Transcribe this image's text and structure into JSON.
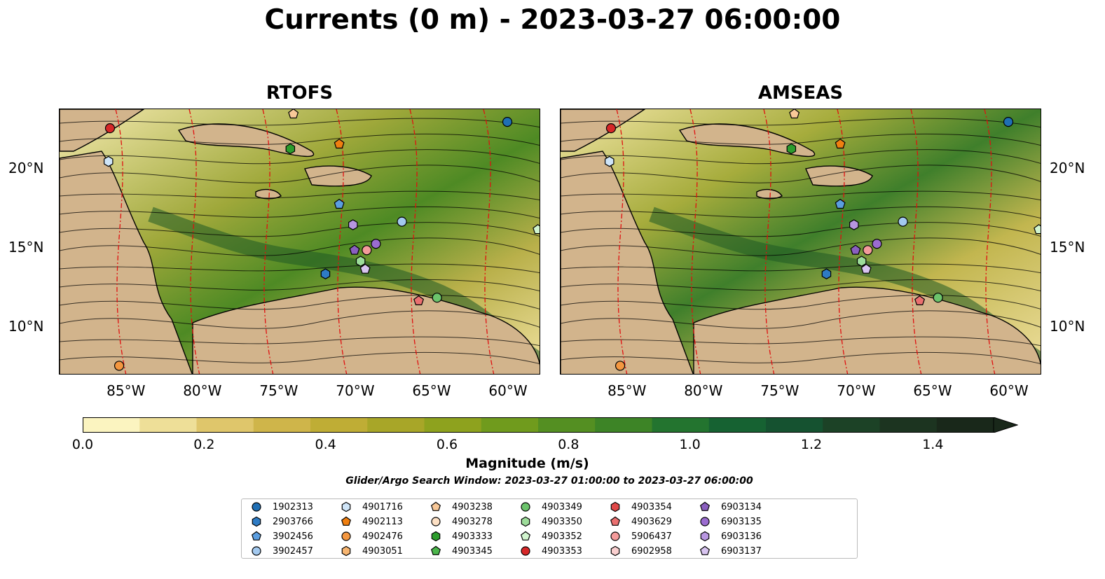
{
  "title": "Currents (0 m) - 2023-03-27 06:00:00",
  "panels": [
    {
      "id": "rtofs",
      "title": "RTOFS"
    },
    {
      "id": "amseas",
      "title": "AMSEAS"
    }
  ],
  "axes": {
    "lon_ticks": [
      "85°W",
      "80°W",
      "75°W",
      "70°W",
      "65°W",
      "60°W"
    ],
    "lat_ticks": [
      "20°N",
      "15°N",
      "10°N"
    ]
  },
  "colorbar": {
    "title": "Magnitude (m/s)",
    "ticks": [
      "0.0",
      "0.2",
      "0.4",
      "0.6",
      "0.8",
      "1.0",
      "1.2",
      "1.4"
    ],
    "range": [
      0.0,
      1.5
    ],
    "colors": [
      "#fbf4c0",
      "#eedf98",
      "#dfc66b",
      "#cfb54a",
      "#bfad35",
      "#a8a628",
      "#8ea21e",
      "#709b1d",
      "#548f22",
      "#3d8426",
      "#23742f",
      "#166232",
      "#155230",
      "#1c4226",
      "#1c3420",
      "#19281a"
    ]
  },
  "search_window": "Glider/Argo Search Window: 2023-03-27 01:00:00 to 2023-03-27 06:00:00",
  "legend": [
    {
      "id": "1902313",
      "shape": "circle",
      "color": "#1f6fb4"
    },
    {
      "id": "2903766",
      "shape": "hexagon",
      "color": "#2e7bc4"
    },
    {
      "id": "3902456",
      "shape": "pentagon",
      "color": "#5b9ee0"
    },
    {
      "id": "3902457",
      "shape": "circle",
      "color": "#a3c9ef"
    },
    {
      "id": "4901716",
      "shape": "hexagon",
      "color": "#cfe5f8"
    },
    {
      "id": "4902113",
      "shape": "pentagon",
      "color": "#f07f10"
    },
    {
      "id": "4902476",
      "shape": "circle",
      "color": "#f49740"
    },
    {
      "id": "4903051",
      "shape": "hexagon",
      "color": "#f7b570"
    },
    {
      "id": "4903238",
      "shape": "pentagon",
      "color": "#f8c898"
    },
    {
      "id": "4903278",
      "shape": "circle",
      "color": "#fde0c4"
    },
    {
      "id": "4903333",
      "shape": "hexagon",
      "color": "#2c9c2c"
    },
    {
      "id": "4903345",
      "shape": "pentagon",
      "color": "#4bb64b"
    },
    {
      "id": "4903349",
      "shape": "circle",
      "color": "#6cc46c"
    },
    {
      "id": "4903350",
      "shape": "hexagon",
      "color": "#9ddc9a"
    },
    {
      "id": "4903352",
      "shape": "pentagon",
      "color": "#d2f5cf"
    },
    {
      "id": "4903353",
      "shape": "circle",
      "color": "#d62728"
    },
    {
      "id": "4903354",
      "shape": "hexagon",
      "color": "#e04848"
    },
    {
      "id": "4903629",
      "shape": "pentagon",
      "color": "#ea7070"
    },
    {
      "id": "5906437",
      "shape": "circle",
      "color": "#f49b9b"
    },
    {
      "id": "6902958",
      "shape": "hexagon",
      "color": "#f9cfcf"
    },
    {
      "id": "6903134",
      "shape": "pentagon",
      "color": "#8a5fbf"
    },
    {
      "id": "6903135",
      "shape": "circle",
      "color": "#9b6cd0"
    },
    {
      "id": "6903136",
      "shape": "hexagon",
      "color": "#b896e0"
    },
    {
      "id": "6903137",
      "shape": "pentagon",
      "color": "#d8c4f0"
    }
  ],
  "floats": {
    "rtofs": [
      {
        "id": "4903353",
        "lon": -86.2,
        "lat": 22.6
      },
      {
        "id": "4901716",
        "lon": -86.3,
        "lat": 20.5
      },
      {
        "id": "4903238",
        "lon": -74.2,
        "lat": 23.5
      },
      {
        "id": "4903333",
        "lon": -74.4,
        "lat": 21.3
      },
      {
        "id": "4902113",
        "lon": -71.2,
        "lat": 21.6
      },
      {
        "id": "1902313",
        "lon": -60.2,
        "lat": 23.0
      },
      {
        "id": "3902456",
        "lon": -71.2,
        "lat": 17.8
      },
      {
        "id": "3902457",
        "lon": -67.1,
        "lat": 16.7
      },
      {
        "id": "6903136",
        "lon": -70.3,
        "lat": 16.5
      },
      {
        "id": "4903352",
        "lon": -58.2,
        "lat": 16.2
      },
      {
        "id": "6903135",
        "lon": -68.8,
        "lat": 15.3
      },
      {
        "id": "5906437",
        "lon": -69.4,
        "lat": 14.9
      },
      {
        "id": "6903134",
        "lon": -70.2,
        "lat": 14.9
      },
      {
        "id": "4903350",
        "lon": -69.8,
        "lat": 14.2
      },
      {
        "id": "6903137",
        "lon": -69.5,
        "lat": 13.7
      },
      {
        "id": "2903766",
        "lon": -72.1,
        "lat": 13.4
      },
      {
        "id": "4903629",
        "lon": -66.0,
        "lat": 11.7
      },
      {
        "id": "4903349",
        "lon": -64.8,
        "lat": 11.9
      },
      {
        "id": "4902476",
        "lon": -85.6,
        "lat": 7.6
      }
    ],
    "amseas": [
      {
        "id": "4903353",
        "lon": -86.2,
        "lat": 22.6
      },
      {
        "id": "4901716",
        "lon": -86.3,
        "lat": 20.5
      },
      {
        "id": "4903238",
        "lon": -74.2,
        "lat": 23.5
      },
      {
        "id": "4903333",
        "lon": -74.4,
        "lat": 21.3
      },
      {
        "id": "4902113",
        "lon": -71.2,
        "lat": 21.6
      },
      {
        "id": "1902313",
        "lon": -60.2,
        "lat": 23.0
      },
      {
        "id": "3902456",
        "lon": -71.2,
        "lat": 17.8
      },
      {
        "id": "3902457",
        "lon": -67.1,
        "lat": 16.7
      },
      {
        "id": "6903136",
        "lon": -70.3,
        "lat": 16.5
      },
      {
        "id": "4903352",
        "lon": -58.2,
        "lat": 16.2
      },
      {
        "id": "6903135",
        "lon": -68.8,
        "lat": 15.3
      },
      {
        "id": "5906437",
        "lon": -69.4,
        "lat": 14.9
      },
      {
        "id": "6903134",
        "lon": -70.2,
        "lat": 14.9
      },
      {
        "id": "4903350",
        "lon": -69.8,
        "lat": 14.2
      },
      {
        "id": "6903137",
        "lon": -69.5,
        "lat": 13.7
      },
      {
        "id": "2903766",
        "lon": -72.1,
        "lat": 13.4
      },
      {
        "id": "4903629",
        "lon": -66.0,
        "lat": 11.7
      },
      {
        "id": "4903349",
        "lon": -64.8,
        "lat": 11.9
      },
      {
        "id": "4902476",
        "lon": -85.6,
        "lat": 7.6
      }
    ]
  }
}
